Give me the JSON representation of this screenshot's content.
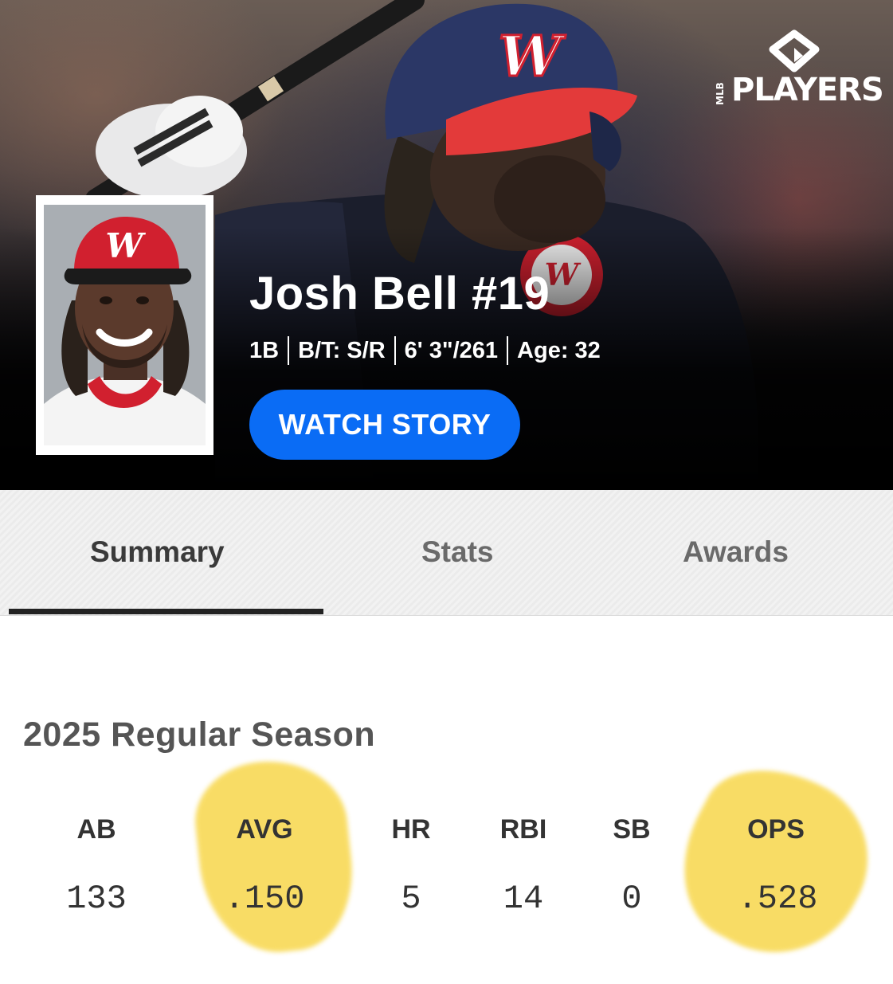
{
  "brand": {
    "logo_text": "PLAYERS",
    "logo_small": "MLB"
  },
  "player": {
    "name": "Josh Bell #19",
    "position": "1B",
    "bats_throws": "B/T: S/R",
    "height_weight": "6' 3\"/261",
    "age": "Age: 32"
  },
  "watch_button": {
    "label": "WATCH STORY"
  },
  "tabs": [
    {
      "label": "Summary",
      "active": true
    },
    {
      "label": "Stats",
      "active": false
    },
    {
      "label": "Awards",
      "active": false
    }
  ],
  "season": {
    "title": "2025 Regular Season",
    "stats": [
      {
        "label": "AB",
        "value": "133",
        "highlighted": false
      },
      {
        "label": "AVG",
        "value": ".150",
        "highlighted": true
      },
      {
        "label": "HR",
        "value": "5",
        "highlighted": false
      },
      {
        "label": "RBI",
        "value": "14",
        "highlighted": false
      },
      {
        "label": "SB",
        "value": "0",
        "highlighted": false
      },
      {
        "label": "OPS",
        "value": ".528",
        "highlighted": true
      }
    ]
  },
  "colors": {
    "accent_blue": "#0a6cf5",
    "highlight_yellow": "#f7d33a",
    "nationals_red": "#d1202f",
    "nationals_navy": "#1f2a5a"
  }
}
